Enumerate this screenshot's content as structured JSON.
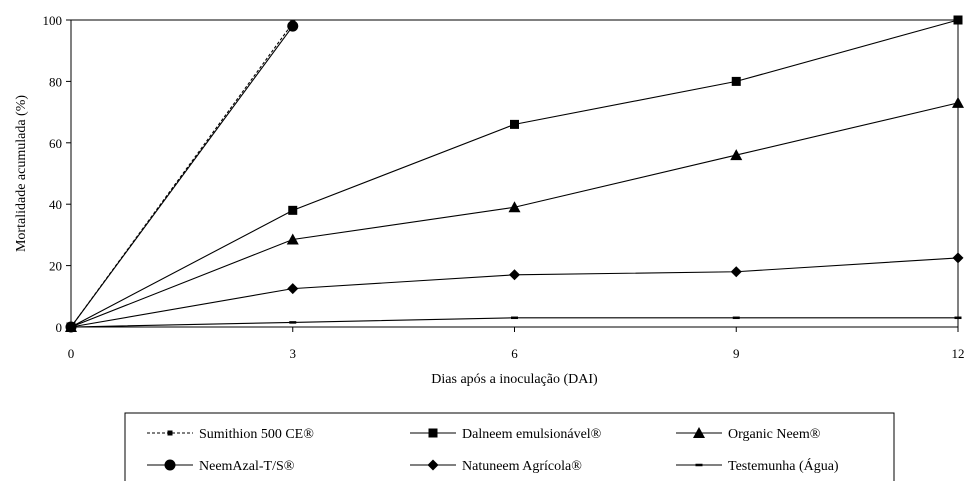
{
  "chart_data": {
    "type": "line",
    "title": "",
    "xlabel": "Dias após a inoculação (DAI)",
    "ylabel": "Mortalidade acumulada (%)",
    "xlim": [
      0,
      12
    ],
    "ylim": [
      0,
      100
    ],
    "x_ticks": [
      0,
      3,
      6,
      9,
      12
    ],
    "y_ticks": [
      0,
      20,
      40,
      60,
      80,
      100
    ],
    "grid": false,
    "legend_position": "bottom",
    "series": [
      {
        "name": "Sumithion 500 CE®",
        "marker": "small-square",
        "dashed": true,
        "points": [
          [
            0,
            0
          ],
          [
            3,
            99
          ]
        ]
      },
      {
        "name": "Dalneem emulsionável®",
        "marker": "square",
        "dashed": false,
        "points": [
          [
            0,
            0
          ],
          [
            3,
            38
          ],
          [
            6,
            66
          ],
          [
            9,
            80
          ],
          [
            12,
            100
          ]
        ]
      },
      {
        "name": "Organic Neem®",
        "marker": "triangle",
        "dashed": false,
        "points": [
          [
            0,
            0
          ],
          [
            3,
            28.5
          ],
          [
            6,
            39
          ],
          [
            9,
            56
          ],
          [
            12,
            73
          ]
        ]
      },
      {
        "name": "NeemAzal-T/S®",
        "marker": "circle",
        "dashed": false,
        "points": [
          [
            0,
            0
          ],
          [
            3,
            98
          ]
        ]
      },
      {
        "name": "Natuneem Agrícola®",
        "marker": "diamond",
        "dashed": false,
        "points": [
          [
            0,
            0
          ],
          [
            3,
            12.5
          ],
          [
            6,
            17
          ],
          [
            9,
            18
          ],
          [
            12,
            22.5
          ]
        ]
      },
      {
        "name": "Testemunha (Água)",
        "marker": "dash",
        "dashed": false,
        "points": [
          [
            0,
            0
          ],
          [
            3,
            1.5
          ],
          [
            6,
            3
          ],
          [
            9,
            3
          ],
          [
            12,
            3
          ]
        ]
      }
    ]
  }
}
